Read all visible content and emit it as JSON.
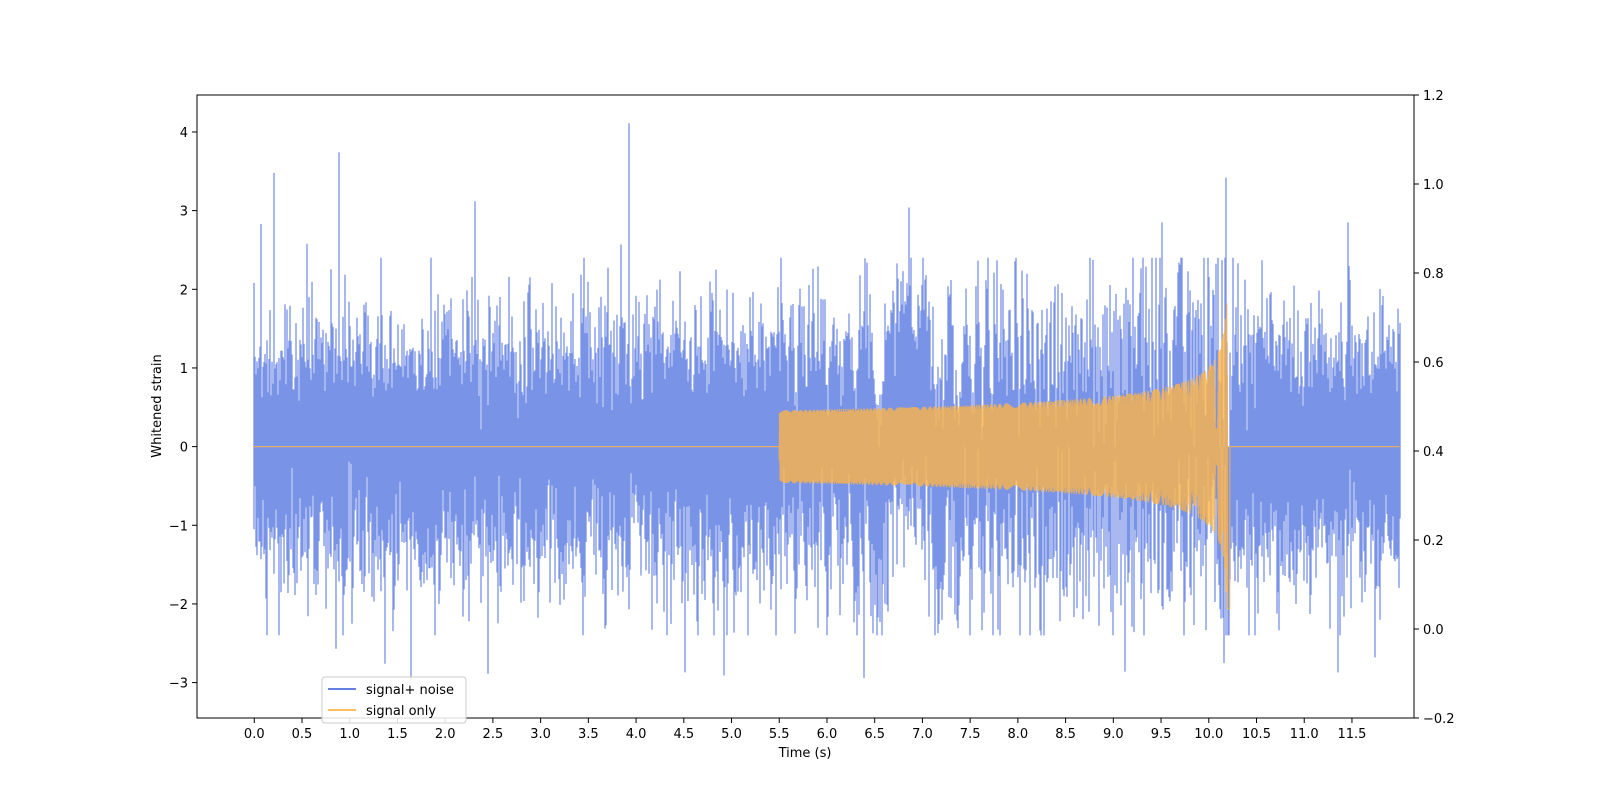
{
  "chart_data": {
    "type": "line",
    "xlabel": "Time (s)",
    "ylabel": "Whitened strain",
    "xlim": [
      -0.6,
      12.15
    ],
    "ylim": [
      -3.45,
      4.47
    ],
    "y2lim": [
      -0.2,
      1.2
    ],
    "x_ticks": [
      0.0,
      0.5,
      1.0,
      1.5,
      2.0,
      2.5,
      3.0,
      3.5,
      4.0,
      4.5,
      5.0,
      5.5,
      6.0,
      6.5,
      7.0,
      7.5,
      8.0,
      8.5,
      9.0,
      9.5,
      10.0,
      10.5,
      11.0,
      11.5
    ],
    "x_tick_labels": [
      "0.0",
      "0.5",
      "1.0",
      "1.5",
      "2.0",
      "2.5",
      "3.0",
      "3.5",
      "4.0",
      "4.5",
      "5.0",
      "5.5",
      "6.0",
      "6.5",
      "7.0",
      "7.5",
      "8.0",
      "8.5",
      "9.0",
      "9.5",
      "10.0",
      "10.5",
      "11.0",
      "11.5"
    ],
    "y_ticks": [
      -3,
      -2,
      -1,
      0,
      1,
      2,
      3,
      4
    ],
    "y_tick_labels": [
      "−3",
      "−2",
      "−1",
      "0",
      "1",
      "2",
      "3",
      "4"
    ],
    "y2_ticks": [
      -0.2,
      0.0,
      0.2,
      0.4,
      0.6,
      0.8,
      1.0,
      1.2
    ],
    "y2_tick_labels": [
      "−0.2",
      "0.0",
      "0.2",
      "0.4",
      "0.6",
      "0.8",
      "1.0",
      "1.2"
    ],
    "grid": false,
    "legend_position": "bottom-left",
    "series": [
      {
        "name": "signal+ noise",
        "color": "#4c6fdf",
        "opacity": 0.75,
        "description": "whitened noise plus injected chirp, amplitude typically within ±2.5",
        "x_range": [
          0.0,
          12.0
        ],
        "noise_std": 0.75,
        "peaks": [
          {
            "x": 0.21,
            "y": 3.48
          },
          {
            "x": 0.07,
            "y": 2.83
          },
          {
            "x": 0.89,
            "y": 3.74
          },
          {
            "x": 0.55,
            "y": 2.58
          },
          {
            "x": 2.31,
            "y": 3.12
          },
          {
            "x": 3.93,
            "y": 4.11
          },
          {
            "x": 3.84,
            "y": 2.57
          },
          {
            "x": 6.86,
            "y": 3.04
          },
          {
            "x": 9.51,
            "y": 2.85
          },
          {
            "x": 10.18,
            "y": 3.42
          },
          {
            "x": 11.46,
            "y": 2.85
          },
          {
            "x": 1.64,
            "y": -2.97
          },
          {
            "x": 0.86,
            "y": -2.57
          },
          {
            "x": 1.37,
            "y": -2.76
          },
          {
            "x": 2.45,
            "y": -2.89
          },
          {
            "x": 4.51,
            "y": -2.87
          },
          {
            "x": 4.92,
            "y": -2.91
          },
          {
            "x": 6.39,
            "y": -2.94
          },
          {
            "x": 9.12,
            "y": -2.86
          },
          {
            "x": 10.16,
            "y": -2.75
          },
          {
            "x": 11.35,
            "y": -2.87
          },
          {
            "x": 11.74,
            "y": -2.68
          }
        ]
      },
      {
        "name": "signal only",
        "color": "#fbb448",
        "opacity": 0.8,
        "description": "chirp waveform: ~0 until ~5.5 s, growing oscillation peaking at ~10.2 s, then 0",
        "chirp_start": 5.5,
        "merger_time": 10.2,
        "peak_amplitude": 2.7
      }
    ]
  }
}
